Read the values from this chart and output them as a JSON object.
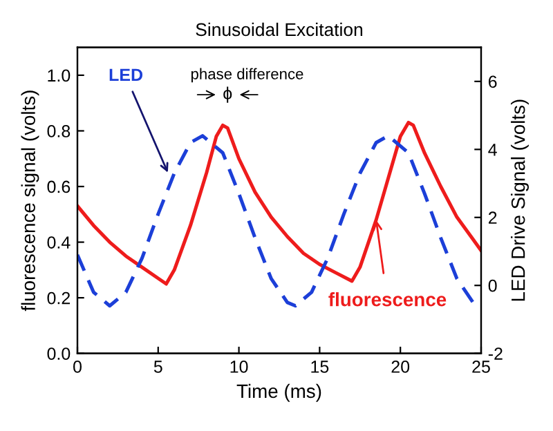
{
  "chart_data": {
    "type": "line",
    "title": "Sinusoidal Excitation",
    "xlabel": "Time (ms)",
    "ylabel": "fluorescence signal (volts)",
    "y2label": "LED Drive Signal (volts)",
    "xlim": [
      0,
      25
    ],
    "xticks": [
      0,
      5,
      10,
      15,
      20,
      25
    ],
    "ylim": [
      0,
      1.1
    ],
    "yticks": [
      {
        "value": 0,
        "label": "0.0"
      },
      {
        "value": 0.2,
        "label": "0.2"
      },
      {
        "value": 0.4,
        "label": "0.4"
      },
      {
        "value": 0.6,
        "label": "0.6"
      },
      {
        "value": 0.8,
        "label": "0.8"
      },
      {
        "value": 1.0,
        "label": "1.0"
      }
    ],
    "y2lim": [
      -2,
      7
    ],
    "y2ticks": [
      -2,
      0,
      2,
      4,
      6
    ],
    "grid": false,
    "legend": false,
    "series": [
      {
        "color": "#ee1c1c",
        "line_style": "solid",
        "x": [
          0,
          1,
          2,
          3,
          4,
          5,
          5.5,
          6,
          7,
          8,
          8.6,
          9,
          9.3,
          10,
          11,
          12,
          13,
          14,
          15,
          16,
          17,
          17.5,
          18.5,
          19.5,
          20,
          20.5,
          20.8,
          21.5,
          22.5,
          23.5,
          24.5,
          25
        ],
        "values": [
          0.53,
          0.46,
          0.4,
          0.35,
          0.31,
          0.27,
          0.25,
          0.3,
          0.46,
          0.65,
          0.78,
          0.82,
          0.81,
          0.7,
          0.58,
          0.49,
          0.42,
          0.36,
          0.32,
          0.29,
          0.26,
          0.31,
          0.48,
          0.68,
          0.78,
          0.83,
          0.82,
          0.72,
          0.6,
          0.49,
          0.41,
          0.37
        ]
      },
      {
        "color": "#1c3fd8",
        "line_style": "dashed",
        "axis": "y2",
        "x": [
          0,
          1,
          2,
          3,
          4,
          5,
          6,
          7,
          7.75,
          9,
          10,
          11,
          12,
          13,
          13.5,
          14.5,
          15.5,
          16.5,
          17.5,
          18.5,
          19.25,
          20.5,
          21.5,
          22.5,
          23.5,
          24.5,
          25
        ],
        "values": [
          0.9,
          -0.2,
          -0.6,
          -0.2,
          0.8,
          2.1,
          3.3,
          4.2,
          4.4,
          3.9,
          2.7,
          1.4,
          0.2,
          -0.5,
          -0.6,
          -0.2,
          0.8,
          2.1,
          3.3,
          4.2,
          4.4,
          3.9,
          2.7,
          1.4,
          0.2,
          -0.5,
          -0.6
        ]
      }
    ],
    "annotations": [
      {
        "text": "LED",
        "x": 5.6,
        "y": 0.65
      },
      "phase difference",
      "ϕ",
      {
        "text": "fluorescence",
        "x": 18.5,
        "y": 0.48
      }
    ]
  }
}
